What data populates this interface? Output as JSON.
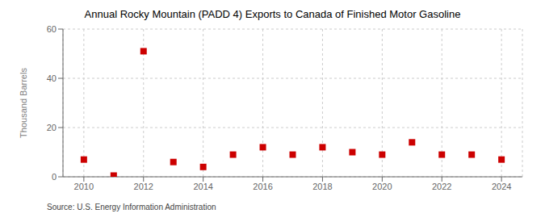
{
  "chart_data": {
    "type": "scatter",
    "title": "Annual Rocky Mountain (PADD 4) Exports to Canada of Finished Motor Gasoline",
    "ylabel": "Thousand Barrels",
    "annotations": [
      "Source: U.S. Energy Information Administration"
    ],
    "x": [
      2010,
      2011,
      2012,
      2013,
      2014,
      2015,
      2016,
      2017,
      2018,
      2019,
      2020,
      2021,
      2022,
      2023,
      2024
    ],
    "values": [
      7,
      0.5,
      51,
      6,
      4,
      9,
      12,
      9,
      12,
      10,
      9,
      14,
      9,
      9,
      7
    ],
    "xlim": [
      2009.3,
      2024.7
    ],
    "ylim": [
      0,
      60
    ],
    "xticks": [
      2010,
      2012,
      2014,
      2016,
      2018,
      2020,
      2022,
      2024
    ],
    "yticks": [
      0,
      20,
      40,
      60
    ],
    "color": "#cc0000",
    "marker": "square",
    "grid": true
  }
}
